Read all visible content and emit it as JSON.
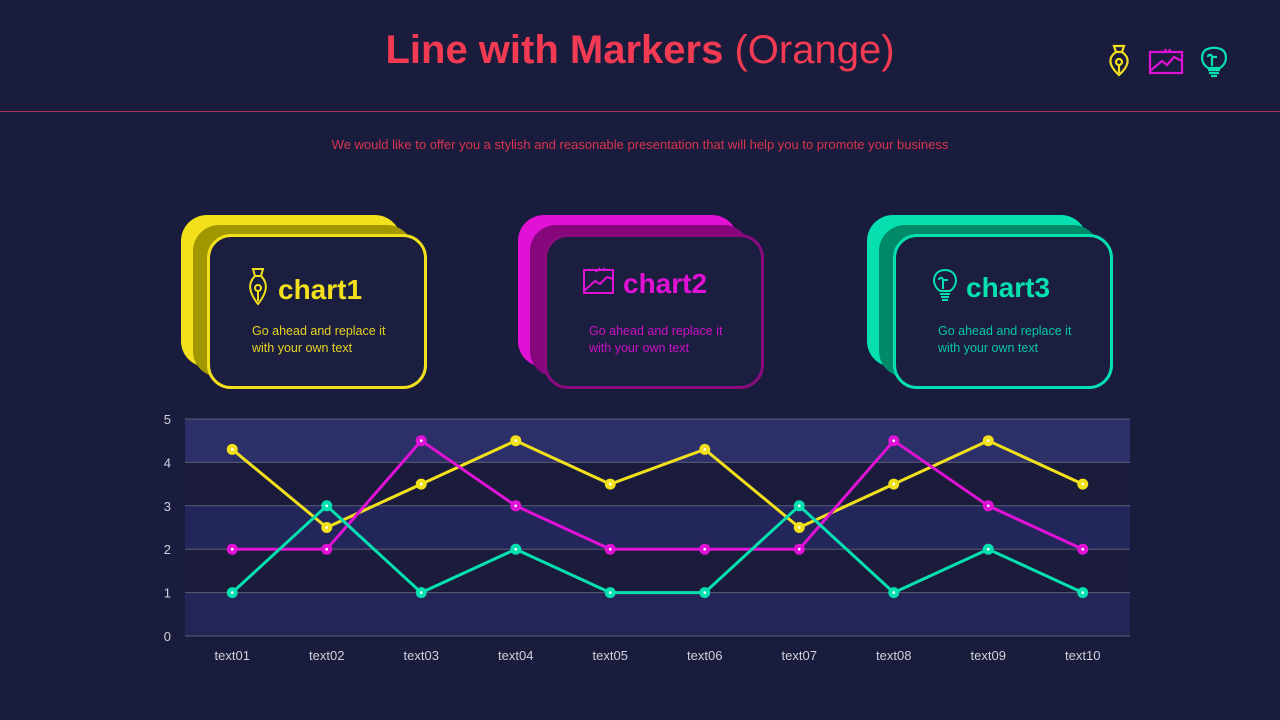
{
  "header": {
    "title_bold": "Line with Markers",
    "title_light": "(Orange)",
    "subtitle": "We would like to offer you a stylish and reasonable presentation that will help you to promote your business",
    "icons": [
      "pen-nib-icon",
      "image-chart-icon",
      "lightbulb-icon"
    ]
  },
  "colors": {
    "background": "#1a1c3d",
    "title": "#f23b53",
    "yellow": "#f2e01c",
    "magenta": "#e012d6",
    "teal": "#06e0b0"
  },
  "cards": [
    {
      "title": "chart1",
      "text_line1": "Go ahead and replace it",
      "text_line2": "with your own text",
      "icon": "pen-nib-icon"
    },
    {
      "title": "chart2",
      "text_line1": "Go ahead and replace it",
      "text_line2": "with your own text",
      "icon": "image-chart-icon"
    },
    {
      "title": "chart3",
      "text_line1": "Go ahead and replace it",
      "text_line2": "with your own text",
      "icon": "lightbulb-icon"
    }
  ],
  "chart_data": {
    "type": "line",
    "title": "Line with Markers (Orange)",
    "xlabel": "",
    "ylabel": "",
    "ylim": [
      0,
      5
    ],
    "yticks": [
      0,
      1,
      2,
      3,
      4,
      5
    ],
    "grid": true,
    "legend": "none",
    "categories": [
      "text01",
      "text02",
      "text03",
      "text04",
      "text05",
      "text06",
      "text07",
      "text08",
      "text09",
      "text10"
    ],
    "series": [
      {
        "name": "chart1",
        "color": "#f2e01c",
        "values": [
          4.3,
          2.5,
          3.5,
          4.5,
          3.5,
          4.3,
          2.5,
          3.5,
          4.5,
          3.5
        ]
      },
      {
        "name": "chart2",
        "color": "#e012d6",
        "values": [
          2,
          2,
          4.5,
          3,
          2,
          2,
          2,
          4.5,
          3,
          2
        ]
      },
      {
        "name": "chart3",
        "color": "#06e0b0",
        "values": [
          1,
          3,
          1,
          2,
          1,
          1,
          3,
          1,
          2,
          1
        ]
      }
    ]
  }
}
